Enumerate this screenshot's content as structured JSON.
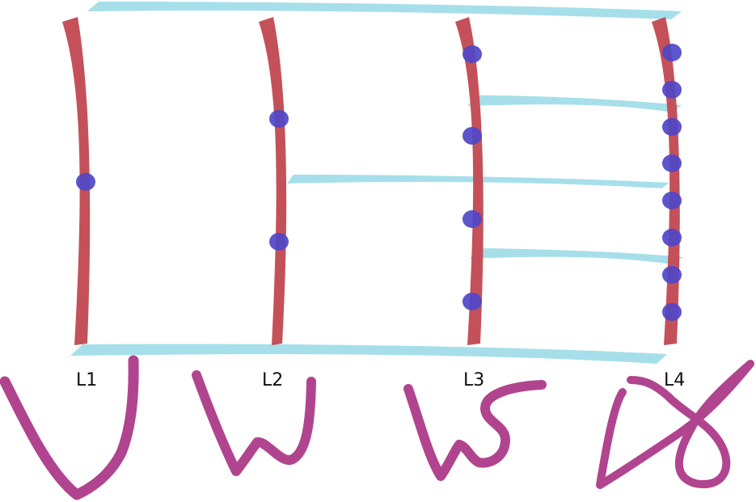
{
  "diagram": {
    "levels": [
      {
        "label": "L1",
        "dots": 1
      },
      {
        "label": "L2",
        "dots": 2
      },
      {
        "label": "L3",
        "dots": 4
      },
      {
        "label": "L4",
        "dots": 8
      }
    ],
    "colors": {
      "line": "#c4515a",
      "dot": "#4f47c7",
      "connector": "#a6dfea",
      "glyph": "#b1448f",
      "text": "#111111"
    }
  }
}
